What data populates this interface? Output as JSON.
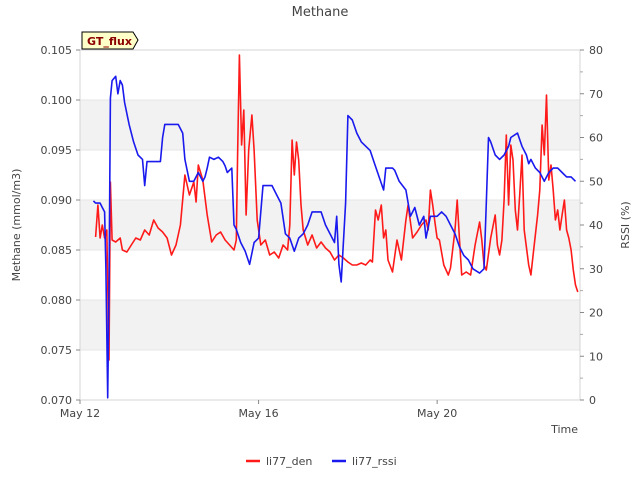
{
  "chart_data": {
    "type": "line",
    "title": "Methane",
    "xlabel": "Time",
    "ylabel": "Methane (mmol/m3)",
    "ylabel_right": "RSSI (%)",
    "badge": "GT_flux",
    "x_ticks": [
      {
        "label": "May 12",
        "value": 12
      },
      {
        "label": "May 16",
        "value": 16
      },
      {
        "label": "May 20",
        "value": 20
      }
    ],
    "xlim": [
      12,
      23.2
    ],
    "ylim": [
      0.07,
      0.105
    ],
    "ylim_right": [
      0,
      80
    ],
    "y_ticks": [
      "0.070",
      "0.075",
      "0.080",
      "0.085",
      "0.090",
      "0.095",
      "0.100",
      "0.105"
    ],
    "y_ticks_right": [
      "0",
      "10",
      "20",
      "30",
      "40",
      "50",
      "60",
      "70",
      "80"
    ],
    "grid": "horizontal bands",
    "legend_position": "bottom-center",
    "series": [
      {
        "name": "li77_den",
        "color": "#ff1a1a",
        "axis": "left",
        "points": [
          [
            12.35,
            0.0863
          ],
          [
            12.4,
            0.0895
          ],
          [
            12.45,
            0.0862
          ],
          [
            12.5,
            0.0875
          ],
          [
            12.55,
            0.0862
          ],
          [
            12.6,
            0.087
          ],
          [
            12.65,
            0.074
          ],
          [
            12.68,
            0.0918
          ],
          [
            12.72,
            0.086
          ],
          [
            12.8,
            0.0858
          ],
          [
            12.9,
            0.0862
          ],
          [
            12.95,
            0.085
          ],
          [
            13.05,
            0.0848
          ],
          [
            13.15,
            0.0855
          ],
          [
            13.25,
            0.0862
          ],
          [
            13.35,
            0.086
          ],
          [
            13.45,
            0.087
          ],
          [
            13.55,
            0.0865
          ],
          [
            13.65,
            0.088
          ],
          [
            13.75,
            0.0872
          ],
          [
            13.85,
            0.0868
          ],
          [
            13.95,
            0.0862
          ],
          [
            14.05,
            0.0845
          ],
          [
            14.15,
            0.0855
          ],
          [
            14.25,
            0.0875
          ],
          [
            14.35,
            0.0925
          ],
          [
            14.45,
            0.0905
          ],
          [
            14.55,
            0.0918
          ],
          [
            14.6,
            0.0898
          ],
          [
            14.65,
            0.0935
          ],
          [
            14.75,
            0.092
          ],
          [
            14.85,
            0.0885
          ],
          [
            14.95,
            0.0858
          ],
          [
            15.05,
            0.0865
          ],
          [
            15.15,
            0.0868
          ],
          [
            15.25,
            0.086
          ],
          [
            15.35,
            0.0855
          ],
          [
            15.45,
            0.085
          ],
          [
            15.5,
            0.086
          ],
          [
            15.53,
            0.0945
          ],
          [
            15.57,
            0.1045
          ],
          [
            15.62,
            0.0955
          ],
          [
            15.67,
            0.099
          ],
          [
            15.72,
            0.0885
          ],
          [
            15.78,
            0.095
          ],
          [
            15.85,
            0.0985
          ],
          [
            15.9,
            0.095
          ],
          [
            15.97,
            0.088
          ],
          [
            16.05,
            0.0855
          ],
          [
            16.15,
            0.086
          ],
          [
            16.25,
            0.0845
          ],
          [
            16.35,
            0.0848
          ],
          [
            16.45,
            0.0842
          ],
          [
            16.55,
            0.0855
          ],
          [
            16.65,
            0.085
          ],
          [
            16.7,
            0.0875
          ],
          [
            16.75,
            0.096
          ],
          [
            16.8,
            0.0925
          ],
          [
            16.85,
            0.0958
          ],
          [
            16.9,
            0.094
          ],
          [
            16.95,
            0.0895
          ],
          [
            17.0,
            0.087
          ],
          [
            17.1,
            0.0855
          ],
          [
            17.2,
            0.0865
          ],
          [
            17.3,
            0.0852
          ],
          [
            17.4,
            0.0858
          ],
          [
            17.5,
            0.0852
          ],
          [
            17.6,
            0.0848
          ],
          [
            17.7,
            0.084
          ],
          [
            17.8,
            0.0845
          ],
          [
            17.9,
            0.0842
          ],
          [
            18.0,
            0.0838
          ],
          [
            18.1,
            0.0835
          ],
          [
            18.2,
            0.0835
          ],
          [
            18.3,
            0.0837
          ],
          [
            18.4,
            0.0835
          ],
          [
            18.5,
            0.084
          ],
          [
            18.55,
            0.0838
          ],
          [
            18.62,
            0.089
          ],
          [
            18.68,
            0.088
          ],
          [
            18.75,
            0.0895
          ],
          [
            18.8,
            0.0862
          ],
          [
            18.85,
            0.087
          ],
          [
            18.9,
            0.084
          ],
          [
            19.0,
            0.0828
          ],
          [
            19.1,
            0.086
          ],
          [
            19.2,
            0.084
          ],
          [
            19.3,
            0.088
          ],
          [
            19.35,
            0.0895
          ],
          [
            19.45,
            0.0862
          ],
          [
            19.55,
            0.0868
          ],
          [
            19.65,
            0.0875
          ],
          [
            19.75,
            0.088
          ],
          [
            19.8,
            0.087
          ],
          [
            19.85,
            0.091
          ],
          [
            19.9,
            0.0895
          ],
          [
            19.95,
            0.0878
          ],
          [
            20.0,
            0.0862
          ],
          [
            20.05,
            0.086
          ],
          [
            20.15,
            0.0835
          ],
          [
            20.25,
            0.0825
          ],
          [
            20.3,
            0.0832
          ],
          [
            20.4,
            0.087
          ],
          [
            20.45,
            0.09
          ],
          [
            20.5,
            0.086
          ],
          [
            20.55,
            0.0825
          ],
          [
            20.65,
            0.0828
          ],
          [
            20.75,
            0.0825
          ],
          [
            20.85,
            0.0855
          ],
          [
            20.95,
            0.0878
          ],
          [
            21.0,
            0.086
          ],
          [
            21.05,
            0.0835
          ],
          [
            21.1,
            0.083
          ],
          [
            21.2,
            0.0862
          ],
          [
            21.3,
            0.0885
          ],
          [
            21.35,
            0.0855
          ],
          [
            21.4,
            0.0845
          ],
          [
            21.45,
            0.086
          ],
          [
            21.5,
            0.09
          ],
          [
            21.55,
            0.0965
          ],
          [
            21.6,
            0.0895
          ],
          [
            21.65,
            0.0955
          ],
          [
            21.7,
            0.094
          ],
          [
            21.75,
            0.089
          ],
          [
            21.8,
            0.087
          ],
          [
            21.85,
            0.0905
          ],
          [
            21.9,
            0.0945
          ],
          [
            21.95,
            0.087
          ],
          [
            22.05,
            0.0835
          ],
          [
            22.1,
            0.0825
          ],
          [
            22.15,
            0.0845
          ],
          [
            22.25,
            0.0885
          ],
          [
            22.3,
            0.091
          ],
          [
            22.35,
            0.0975
          ],
          [
            22.4,
            0.0945
          ],
          [
            22.45,
            0.1005
          ],
          [
            22.5,
            0.092
          ],
          [
            22.55,
            0.0935
          ],
          [
            22.6,
            0.091
          ],
          [
            22.65,
            0.088
          ],
          [
            22.7,
            0.089
          ],
          [
            22.75,
            0.087
          ],
          [
            22.8,
            0.0885
          ],
          [
            22.85,
            0.09
          ],
          [
            22.9,
            0.087
          ],
          [
            22.95,
            0.0862
          ],
          [
            23.0,
            0.085
          ],
          [
            23.05,
            0.083
          ],
          [
            23.1,
            0.0815
          ],
          [
            23.15,
            0.0808
          ]
        ]
      },
      {
        "name": "li77_rssi",
        "color": "#1a1aee",
        "axis": "right",
        "points": [
          [
            12.3,
            45.5
          ],
          [
            12.35,
            45.0
          ],
          [
            12.45,
            45.0
          ],
          [
            12.5,
            44.0
          ],
          [
            12.55,
            43.0
          ],
          [
            12.58,
            30.0
          ],
          [
            12.62,
            0.5
          ],
          [
            12.65,
            25.0
          ],
          [
            12.68,
            69.0
          ],
          [
            12.72,
            73.0
          ],
          [
            12.8,
            74.0
          ],
          [
            12.85,
            70.0
          ],
          [
            12.9,
            73.0
          ],
          [
            12.95,
            72.0
          ],
          [
            13.0,
            68.0
          ],
          [
            13.1,
            63.0
          ],
          [
            13.2,
            59.0
          ],
          [
            13.3,
            56.0
          ],
          [
            13.4,
            55.0
          ],
          [
            13.45,
            49.0
          ],
          [
            13.5,
            54.5
          ],
          [
            13.8,
            54.5
          ],
          [
            13.85,
            60.0
          ],
          [
            13.9,
            63.0
          ],
          [
            14.2,
            63.0
          ],
          [
            14.3,
            61.0
          ],
          [
            14.35,
            55.0
          ],
          [
            14.45,
            50.0
          ],
          [
            14.55,
            50.0
          ],
          [
            14.65,
            52.0
          ],
          [
            14.75,
            50.0
          ],
          [
            14.8,
            51.0
          ],
          [
            14.85,
            53.0
          ],
          [
            14.9,
            55.5
          ],
          [
            15.0,
            55.0
          ],
          [
            15.1,
            55.5
          ],
          [
            15.2,
            54.5
          ],
          [
            15.25,
            53.5
          ],
          [
            15.3,
            52.0
          ],
          [
            15.4,
            53.0
          ],
          [
            15.45,
            40.0
          ],
          [
            15.5,
            39.0
          ],
          [
            15.6,
            36.0
          ],
          [
            15.7,
            34.0
          ],
          [
            15.8,
            31.0
          ],
          [
            15.9,
            36.0
          ],
          [
            16.0,
            37.0
          ],
          [
            16.1,
            49.0
          ],
          [
            16.3,
            49.0
          ],
          [
            16.4,
            47.0
          ],
          [
            16.5,
            45.0
          ],
          [
            16.6,
            38.0
          ],
          [
            16.7,
            37.0
          ],
          [
            16.8,
            34.0
          ],
          [
            16.9,
            37.0
          ],
          [
            17.0,
            38.0
          ],
          [
            17.1,
            40.0
          ],
          [
            17.2,
            43.0
          ],
          [
            17.4,
            43.0
          ],
          [
            17.5,
            40.0
          ],
          [
            17.6,
            38.0
          ],
          [
            17.7,
            36.0
          ],
          [
            17.75,
            42.0
          ],
          [
            17.8,
            31.0
          ],
          [
            17.85,
            27.0
          ],
          [
            17.95,
            45.0
          ],
          [
            18.0,
            65.0
          ],
          [
            18.1,
            64.0
          ],
          [
            18.2,
            61.0
          ],
          [
            18.3,
            59.0
          ],
          [
            18.5,
            57.0
          ],
          [
            18.6,
            54.0
          ],
          [
            18.7,
            51.0
          ],
          [
            18.8,
            48.0
          ],
          [
            18.85,
            53.0
          ],
          [
            19.0,
            53.0
          ],
          [
            19.05,
            52.5
          ],
          [
            19.15,
            50.0
          ],
          [
            19.3,
            48.0
          ],
          [
            19.4,
            42.0
          ],
          [
            19.5,
            44.0
          ],
          [
            19.6,
            40.0
          ],
          [
            19.7,
            42.0
          ],
          [
            19.75,
            37.0
          ],
          [
            19.85,
            42.0
          ],
          [
            20.0,
            42.0
          ],
          [
            20.1,
            43.0
          ],
          [
            20.2,
            42.0
          ],
          [
            20.3,
            40.0
          ],
          [
            20.4,
            38.0
          ],
          [
            20.5,
            35.0
          ],
          [
            20.6,
            33.0
          ],
          [
            20.7,
            32.0
          ],
          [
            20.8,
            30.0
          ],
          [
            20.95,
            29.0
          ],
          [
            21.05,
            30.0
          ],
          [
            21.1,
            45.0
          ],
          [
            21.15,
            60.0
          ],
          [
            21.2,
            59.0
          ],
          [
            21.3,
            56.0
          ],
          [
            21.4,
            55.0
          ],
          [
            21.5,
            56.0
          ],
          [
            21.6,
            58.0
          ],
          [
            21.65,
            60.0
          ],
          [
            21.8,
            61.0
          ],
          [
            21.9,
            58.0
          ],
          [
            22.0,
            56.0
          ],
          [
            22.05,
            54.0
          ],
          [
            22.1,
            55.0
          ],
          [
            22.2,
            53.0
          ],
          [
            22.3,
            52.0
          ],
          [
            22.4,
            50.0
          ],
          [
            22.5,
            52.0
          ],
          [
            22.6,
            53.0
          ],
          [
            22.7,
            53.0
          ],
          [
            22.8,
            52.0
          ],
          [
            22.9,
            51.0
          ],
          [
            23.0,
            51.0
          ],
          [
            23.1,
            50.0
          ]
        ]
      }
    ]
  }
}
